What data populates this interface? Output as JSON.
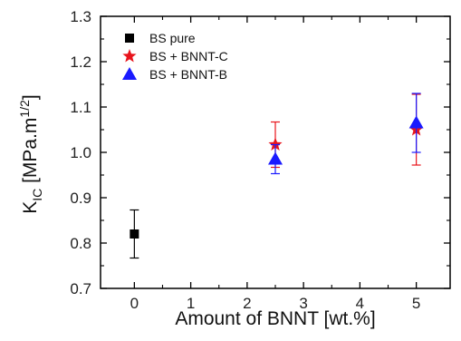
{
  "chart_data": {
    "type": "scatter",
    "title": "",
    "xlabel": "Amount of BNNT [wt.%]",
    "ylabel": {
      "main": "K",
      "sub": "IC",
      "rest": " [MPa.m",
      "sup": "1/2",
      "close": "]"
    },
    "xlim": [
      -0.6,
      5.6
    ],
    "ylim": [
      0.7,
      1.3
    ],
    "xticks": [
      0,
      1,
      2,
      3,
      4,
      5
    ],
    "yticks": [
      0.7,
      0.8,
      0.9,
      1.0,
      1.1,
      1.2,
      1.3
    ],
    "ytick_labels": [
      "0.7",
      "0.8",
      "0.9",
      "1.0",
      "1.1",
      "1.2",
      "1.3"
    ],
    "grid": false,
    "legend_position": "top-left",
    "series": [
      {
        "name": "BS pure",
        "marker": "square",
        "color": "#000000",
        "points": [
          {
            "x": 0,
            "y": 0.82,
            "err": 0.053
          }
        ]
      },
      {
        "name": "BS + BNNT-C",
        "marker": "star",
        "color": "#e8141c",
        "points": [
          {
            "x": 2.5,
            "y": 1.017,
            "err": 0.05
          },
          {
            "x": 5,
            "y": 1.05,
            "err": 0.078
          }
        ]
      },
      {
        "name": "BS + BNNT-B",
        "marker": "triangle",
        "color": "#1a1aff",
        "points": [
          {
            "x": 2.5,
            "y": 0.985,
            "err": 0.032
          },
          {
            "x": 5,
            "y": 1.065,
            "err": 0.065
          }
        ]
      }
    ]
  }
}
